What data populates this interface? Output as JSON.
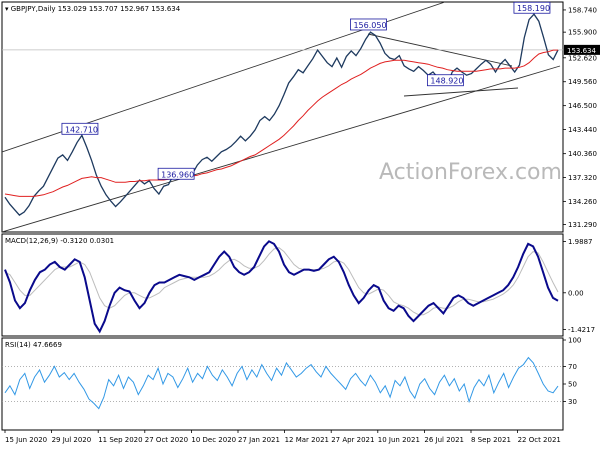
{
  "chart_data": [
    {
      "type": "line",
      "header": {
        "symbol": "GBPJPY,Daily",
        "open": "153.029",
        "high": "153.707",
        "low": "152.967",
        "close": "153.634"
      },
      "ylim": [
        130.6,
        159.5
      ],
      "y_ticks": [
        "158.740",
        "155.900",
        "152.620",
        "149.560",
        "146.500",
        "143.440",
        "140.360",
        "137.320",
        "134.260",
        "131.290"
      ],
      "last_price": 153.634,
      "last_price_label": "153.634",
      "annotations": [
        {
          "label": "142.710",
          "value": 142.71
        },
        {
          "label": "136.960",
          "value": 136.96
        },
        {
          "label": "156.050",
          "value": 156.05
        },
        {
          "label": "148.920",
          "value": 148.92
        },
        {
          "label": "158.190",
          "value": 158.19
        }
      ],
      "close_series": [
        134.8,
        133.9,
        133.2,
        132.5,
        132.9,
        133.7,
        134.9,
        135.6,
        136.2,
        137.4,
        138.6,
        139.8,
        140.2,
        139.5,
        140.6,
        141.8,
        142.7,
        141.2,
        139.5,
        137.6,
        136.2,
        135.1,
        134.3,
        133.6,
        134.2,
        134.9,
        135.6,
        136.3,
        137.0,
        136.5,
        136.9,
        135.9,
        135.2,
        136.2,
        136.4,
        137.6,
        138.4,
        137.9,
        138.4,
        137.8,
        138.9,
        139.6,
        139.9,
        139.4,
        140.0,
        140.6,
        140.9,
        141.3,
        141.9,
        142.6,
        142.0,
        142.6,
        143.4,
        144.6,
        145.1,
        144.6,
        145.4,
        146.5,
        147.9,
        149.4,
        150.2,
        151.1,
        150.7,
        151.6,
        152.5,
        153.6,
        152.8,
        152.0,
        151.5,
        152.6,
        151.4,
        152.8,
        153.5,
        152.9,
        153.8,
        155.0,
        155.9,
        155.5,
        154.5,
        153.2,
        152.6,
        152.4,
        152.9,
        151.6,
        151.2,
        150.9,
        151.5,
        151.0,
        150.4,
        150.8,
        150.1,
        150.4,
        149.2,
        150.8,
        151.3,
        150.8,
        150.4,
        150.6,
        151.2,
        151.8,
        152.3,
        151.8,
        150.8,
        151.8,
        152.4,
        151.6,
        150.8,
        151.7,
        155.2,
        157.5,
        158.2,
        157.3,
        155.2,
        153.0,
        152.4,
        153.634
      ],
      "ma_series": [
        135.2,
        135.1,
        135.0,
        134.9,
        134.9,
        134.9,
        134.9,
        135.0,
        135.1,
        135.3,
        135.5,
        135.8,
        136.1,
        136.3,
        136.6,
        136.9,
        137.2,
        137.3,
        137.4,
        137.3,
        137.3,
        137.1,
        136.9,
        136.7,
        136.7,
        136.7,
        136.8,
        136.8,
        136.9,
        136.9,
        137.0,
        137.0,
        137.0,
        137.0,
        137.1,
        137.2,
        137.3,
        137.4,
        137.5,
        137.5,
        137.6,
        137.8,
        137.9,
        138.1,
        138.3,
        138.4,
        138.6,
        138.8,
        139.1,
        139.4,
        139.7,
        140.0,
        140.2,
        140.6,
        141.0,
        141.4,
        141.8,
        142.2,
        142.7,
        143.3,
        143.9,
        144.6,
        145.2,
        145.9,
        146.5,
        147.1,
        147.6,
        148.0,
        148.4,
        148.8,
        149.2,
        149.5,
        149.9,
        150.2,
        150.5,
        150.9,
        151.3,
        151.6,
        151.9,
        152.1,
        152.2,
        152.3,
        152.3,
        152.3,
        152.2,
        152.1,
        152.0,
        151.9,
        151.8,
        151.6,
        151.4,
        151.3,
        151.1,
        151.0,
        150.9,
        150.9,
        150.9,
        150.9,
        150.9,
        151.0,
        151.1,
        151.2,
        151.2,
        151.2,
        151.3,
        151.3,
        151.3,
        151.4,
        151.6,
        152.0,
        152.6,
        153.1,
        153.3,
        153.4,
        153.6,
        153.6
      ],
      "x_labels": [
        "15 Jun 2020",
        "29 Jul 2020",
        "11 Sep 2020",
        "27 Oct 2020",
        "10 Dec 2020",
        "27 Jan 2021",
        "12 Mar 2021",
        "27 Apr 2021",
        "10 Jun 2021",
        "26 Jul 2021",
        "8 Sep 2021",
        "22 Oct 2021"
      ]
    },
    {
      "type": "line",
      "header": "MACD(12,26,9) -0.3120 0.0301",
      "ylim": [
        -1.6,
        2.05
      ],
      "y_ticks": [
        "1.9887",
        "0.00",
        "-1.4217"
      ],
      "macd_series": [
        0.9,
        0.4,
        -0.3,
        -0.6,
        -0.4,
        0.1,
        0.5,
        0.8,
        0.9,
        1.1,
        1.2,
        1.0,
        0.9,
        1.1,
        1.3,
        1.2,
        0.6,
        -0.3,
        -1.2,
        -1.5,
        -1.1,
        -0.5,
        0.0,
        0.2,
        0.1,
        0.05,
        -0.3,
        -0.6,
        -0.4,
        0.0,
        0.3,
        0.4,
        0.4,
        0.5,
        0.6,
        0.7,
        0.65,
        0.6,
        0.5,
        0.6,
        0.7,
        0.8,
        1.1,
        1.4,
        1.6,
        1.4,
        1.0,
        0.8,
        0.7,
        0.8,
        1.0,
        1.4,
        1.8,
        2.0,
        1.9,
        1.6,
        1.1,
        0.8,
        0.7,
        0.8,
        0.9,
        0.9,
        0.85,
        0.9,
        1.1,
        1.3,
        1.4,
        1.2,
        0.8,
        0.3,
        -0.1,
        -0.4,
        -0.2,
        0.1,
        0.3,
        0.2,
        -0.3,
        -0.6,
        -0.7,
        -0.5,
        -0.6,
        -0.9,
        -1.1,
        -0.9,
        -0.7,
        -0.5,
        -0.4,
        -0.6,
        -0.8,
        -0.5,
        -0.2,
        -0.1,
        -0.2,
        -0.4,
        -0.5,
        -0.4,
        -0.3,
        -0.2,
        -0.1,
        0.0,
        0.1,
        0.3,
        0.6,
        1.0,
        1.5,
        1.9,
        1.8,
        1.4,
        0.8,
        0.2,
        -0.2,
        -0.312
      ],
      "signal_series": [
        0.8,
        0.7,
        0.4,
        0.1,
        -0.1,
        -0.1,
        0.1,
        0.3,
        0.5,
        0.7,
        0.9,
        1.0,
        1.0,
        1.0,
        1.1,
        1.2,
        1.1,
        0.8,
        0.3,
        -0.2,
        -0.5,
        -0.6,
        -0.5,
        -0.3,
        -0.1,
        0.0,
        0.0,
        -0.1,
        -0.2,
        -0.2,
        -0.1,
        0.0,
        0.2,
        0.3,
        0.4,
        0.5,
        0.55,
        0.6,
        0.6,
        0.6,
        0.6,
        0.65,
        0.75,
        0.9,
        1.1,
        1.25,
        1.3,
        1.2,
        1.05,
        0.95,
        0.95,
        1.05,
        1.25,
        1.5,
        1.7,
        1.75,
        1.6,
        1.35,
        1.1,
        0.95,
        0.9,
        0.9,
        0.9,
        0.9,
        0.95,
        1.05,
        1.2,
        1.25,
        1.15,
        0.9,
        0.55,
        0.2,
        0.0,
        -0.05,
        0.05,
        0.15,
        0.1,
        -0.1,
        -0.35,
        -0.45,
        -0.5,
        -0.6,
        -0.75,
        -0.85,
        -0.85,
        -0.75,
        -0.6,
        -0.55,
        -0.6,
        -0.6,
        -0.5,
        -0.35,
        -0.25,
        -0.25,
        -0.3,
        -0.35,
        -0.35,
        -0.3,
        -0.25,
        -0.15,
        -0.05,
        0.1,
        0.3,
        0.6,
        1.0,
        1.4,
        1.6,
        1.55,
        1.2,
        0.8,
        0.4,
        0.0301
      ]
    },
    {
      "type": "line",
      "header": "RSI(14) 47.6669",
      "ylim": [
        0,
        100
      ],
      "y_ticks": [
        "100",
        "70",
        "50",
        "30"
      ],
      "rsi_series": [
        40,
        48,
        38,
        55,
        62,
        45,
        58,
        66,
        52,
        60,
        70,
        58,
        63,
        55,
        62,
        52,
        44,
        33,
        28,
        22,
        35,
        55,
        48,
        60,
        45,
        58,
        52,
        38,
        48,
        60,
        55,
        68,
        50,
        62,
        58,
        46,
        56,
        68,
        52,
        62,
        56,
        70,
        60,
        54,
        66,
        58,
        48,
        62,
        70,
        55,
        66,
        58,
        72,
        62,
        54,
        68,
        60,
        74,
        66,
        58,
        62,
        68,
        72,
        64,
        58,
        70,
        62,
        56,
        50,
        44,
        56,
        62,
        54,
        48,
        60,
        52,
        40,
        48,
        35,
        54,
        48,
        58,
        42,
        34,
        50,
        56,
        45,
        38,
        52,
        60,
        48,
        56,
        42,
        50,
        30,
        46,
        55,
        48,
        60,
        40,
        52,
        62,
        46,
        58,
        68,
        72,
        80,
        74,
        62,
        50,
        42,
        40,
        47.67
      ]
    }
  ],
  "watermark": "ActionForex.com"
}
